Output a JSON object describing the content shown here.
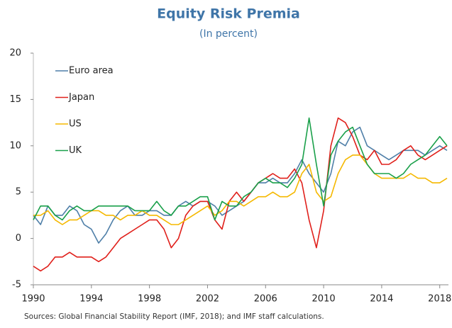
{
  "chart_data": {
    "type": "line",
    "title": "Equity Risk Premia",
    "subtitle": "(In percent)",
    "source": "Sources: Global Financial Stability Report (IMF, 2018); and IMF staff calculations.",
    "x": [
      1990,
      1990.5,
      1991,
      1991.5,
      1992,
      1992.5,
      1993,
      1993.5,
      1994,
      1994.5,
      1995,
      1995.5,
      1996,
      1996.5,
      1997,
      1997.5,
      1998,
      1998.5,
      1999,
      1999.5,
      2000,
      2000.5,
      2001,
      2001.5,
      2002,
      2002.5,
      2003,
      2003.5,
      2004,
      2004.5,
      2005,
      2005.5,
      2006,
      2006.5,
      2007,
      2007.5,
      2008,
      2008.5,
      2009,
      2009.5,
      2010,
      2010.5,
      2011,
      2011.5,
      2012,
      2012.5,
      2013,
      2013.5,
      2014,
      2014.5,
      2015,
      2015.5,
      2016,
      2016.5,
      2017,
      2017.5,
      2018,
      2018.5
    ],
    "series": [
      {
        "name": "Euro area",
        "color": "#4f7fa8",
        "values": [
          2.5,
          1.5,
          3.5,
          2.5,
          2.5,
          3.5,
          3,
          1.5,
          1,
          -0.5,
          0.5,
          2,
          3,
          3.5,
          2.5,
          2.5,
          3,
          3,
          2.5,
          2.5,
          3.5,
          4,
          3.5,
          4,
          4,
          3.5,
          2.5,
          3,
          3.5,
          4,
          5,
          6,
          6,
          6.5,
          6,
          6,
          7,
          8.5,
          7,
          6,
          5,
          7,
          10.5,
          10,
          11.5,
          12,
          10,
          9.5,
          9,
          8.5,
          9,
          9.5,
          9.5,
          9.5,
          9,
          9.5,
          10,
          9.5
        ]
      },
      {
        "name": "Japan",
        "color": "#e0201b",
        "values": [
          -3,
          -3.5,
          -3,
          -2,
          -2,
          -1.5,
          -2,
          -2,
          -2,
          -2.5,
          -2,
          -1,
          0,
          0.5,
          1,
          1.5,
          2,
          2,
          1,
          -1,
          0,
          2.5,
          3.5,
          4,
          4,
          2,
          1,
          4,
          5,
          4,
          5,
          6,
          6.5,
          7,
          6.5,
          6.5,
          7.5,
          6,
          2,
          -1,
          3,
          10,
          13,
          12.5,
          11,
          9,
          8.5,
          9.5,
          8,
          8,
          8.5,
          9.5,
          10,
          9,
          8.5,
          9,
          9.5,
          10
        ]
      },
      {
        "name": "US",
        "color": "#f5b800",
        "values": [
          2.5,
          2.5,
          3,
          2,
          1.5,
          2,
          2,
          2.5,
          3,
          3,
          2.5,
          2.5,
          2,
          2.5,
          2.5,
          3,
          2.5,
          2.5,
          2,
          1.5,
          1.5,
          2,
          2.5,
          3,
          3.5,
          2.5,
          3,
          4,
          4,
          3.5,
          4,
          4.5,
          4.5,
          5,
          4.5,
          4.5,
          5,
          7,
          8,
          5,
          4,
          4.5,
          7,
          8.5,
          9,
          9,
          8,
          7,
          6.5,
          6.5,
          6.5,
          6.5,
          7,
          6.5,
          6.5,
          6,
          6,
          6.5
        ]
      },
      {
        "name": "UK",
        "color": "#1aa04a",
        "values": [
          2,
          3.5,
          3.5,
          2.5,
          2,
          3,
          3.5,
          3,
          3,
          3.5,
          3.5,
          3.5,
          3.5,
          3.5,
          3,
          3,
          3,
          4,
          3,
          2.5,
          3.5,
          3.5,
          4,
          4.5,
          4.5,
          2,
          4,
          3.5,
          3.5,
          4.5,
          5,
          6,
          6.5,
          6,
          6,
          5.5,
          6.5,
          8,
          13,
          8,
          3.5,
          9,
          10.5,
          11.5,
          12,
          10,
          8,
          7,
          7,
          7,
          6.5,
          7,
          8,
          8.5,
          9,
          10,
          11,
          10
        ]
      }
    ],
    "xlim": [
      1990,
      2018.6
    ],
    "xticks": [
      1990,
      1994,
      1998,
      2002,
      2006,
      2010,
      2014,
      2018
    ],
    "ylim": [
      -5,
      20
    ],
    "yticks": [
      -5,
      0,
      5,
      10,
      15,
      20
    ],
    "grid": false,
    "legend": "upper-left"
  }
}
